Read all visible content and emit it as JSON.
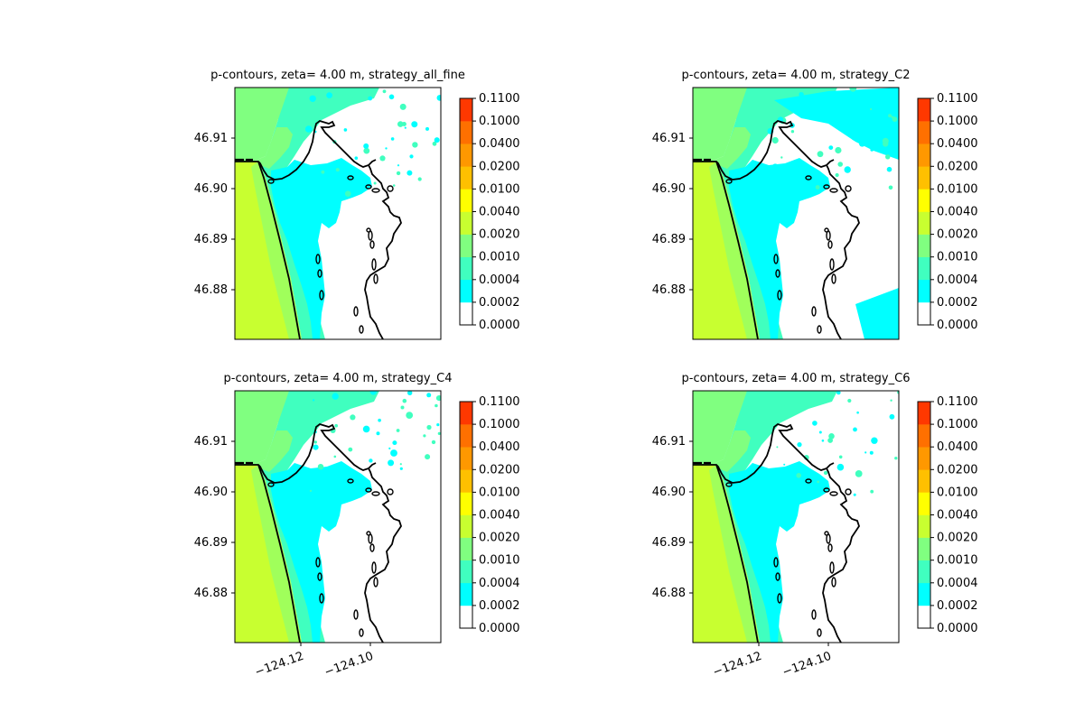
{
  "chart_data": [
    {
      "type": "filled-contour-map",
      "title": "p-contours, zeta= 4.00 m, strategy_all_fine",
      "yticks": [
        "46.88",
        "46.89",
        "46.90",
        "46.91"
      ],
      "xticks": [],
      "colorbar_levels": [
        "0.0000",
        "0.0002",
        "0.0004",
        "0.0010",
        "0.0020",
        "0.0040",
        "0.0100",
        "0.0200",
        "0.0400",
        "0.1000",
        "0.1100"
      ],
      "level_colors": [
        "#ffffff",
        "#00ffff",
        "#40ffbf",
        "#80ff80",
        "#c8ff30",
        "#ffff00",
        "#ffc000",
        "#ff9800",
        "#ff7000",
        "#ff3800",
        "#ff0000"
      ]
    },
    {
      "type": "filled-contour-map",
      "title": "p-contours, zeta= 4.00 m, strategy_C2",
      "yticks": [
        "46.88",
        "46.89",
        "46.90",
        "46.91"
      ],
      "xticks": [],
      "colorbar_levels": [
        "0.0000",
        "0.0002",
        "0.0004",
        "0.0010",
        "0.0020",
        "0.0040",
        "0.0100",
        "0.0200",
        "0.0400",
        "0.1000",
        "0.1100"
      ],
      "level_colors": [
        "#ffffff",
        "#00ffff",
        "#40ffbf",
        "#80ff80",
        "#c8ff30",
        "#ffff00",
        "#ffc000",
        "#ff9800",
        "#ff7000",
        "#ff3800",
        "#ff0000"
      ]
    },
    {
      "type": "filled-contour-map",
      "title": "p-contours, zeta= 4.00 m, strategy_C4",
      "yticks": [
        "46.88",
        "46.89",
        "46.90",
        "46.91"
      ],
      "xticks": [
        "−124.12",
        "−124.10"
      ],
      "colorbar_levels": [
        "0.0000",
        "0.0002",
        "0.0004",
        "0.0010",
        "0.0020",
        "0.0040",
        "0.0100",
        "0.0200",
        "0.0400",
        "0.1000",
        "0.1100"
      ],
      "level_colors": [
        "#ffffff",
        "#00ffff",
        "#40ffbf",
        "#80ff80",
        "#c8ff30",
        "#ffff00",
        "#ffc000",
        "#ff9800",
        "#ff7000",
        "#ff3800",
        "#ff0000"
      ]
    },
    {
      "type": "filled-contour-map",
      "title": "p-contours, zeta= 4.00 m, strategy_C6",
      "yticks": [
        "46.88",
        "46.89",
        "46.90",
        "46.91"
      ],
      "xticks": [
        "−124.12",
        "−124.10"
      ],
      "colorbar_levels": [
        "0.0000",
        "0.0002",
        "0.0004",
        "0.0010",
        "0.0020",
        "0.0040",
        "0.0100",
        "0.0200",
        "0.0400",
        "0.1000",
        "0.1100"
      ],
      "level_colors": [
        "#ffffff",
        "#00ffff",
        "#40ffbf",
        "#80ff80",
        "#c8ff30",
        "#ffff00",
        "#ffc000",
        "#ff9800",
        "#ff7000",
        "#ff3800",
        "#ff0000"
      ]
    }
  ]
}
